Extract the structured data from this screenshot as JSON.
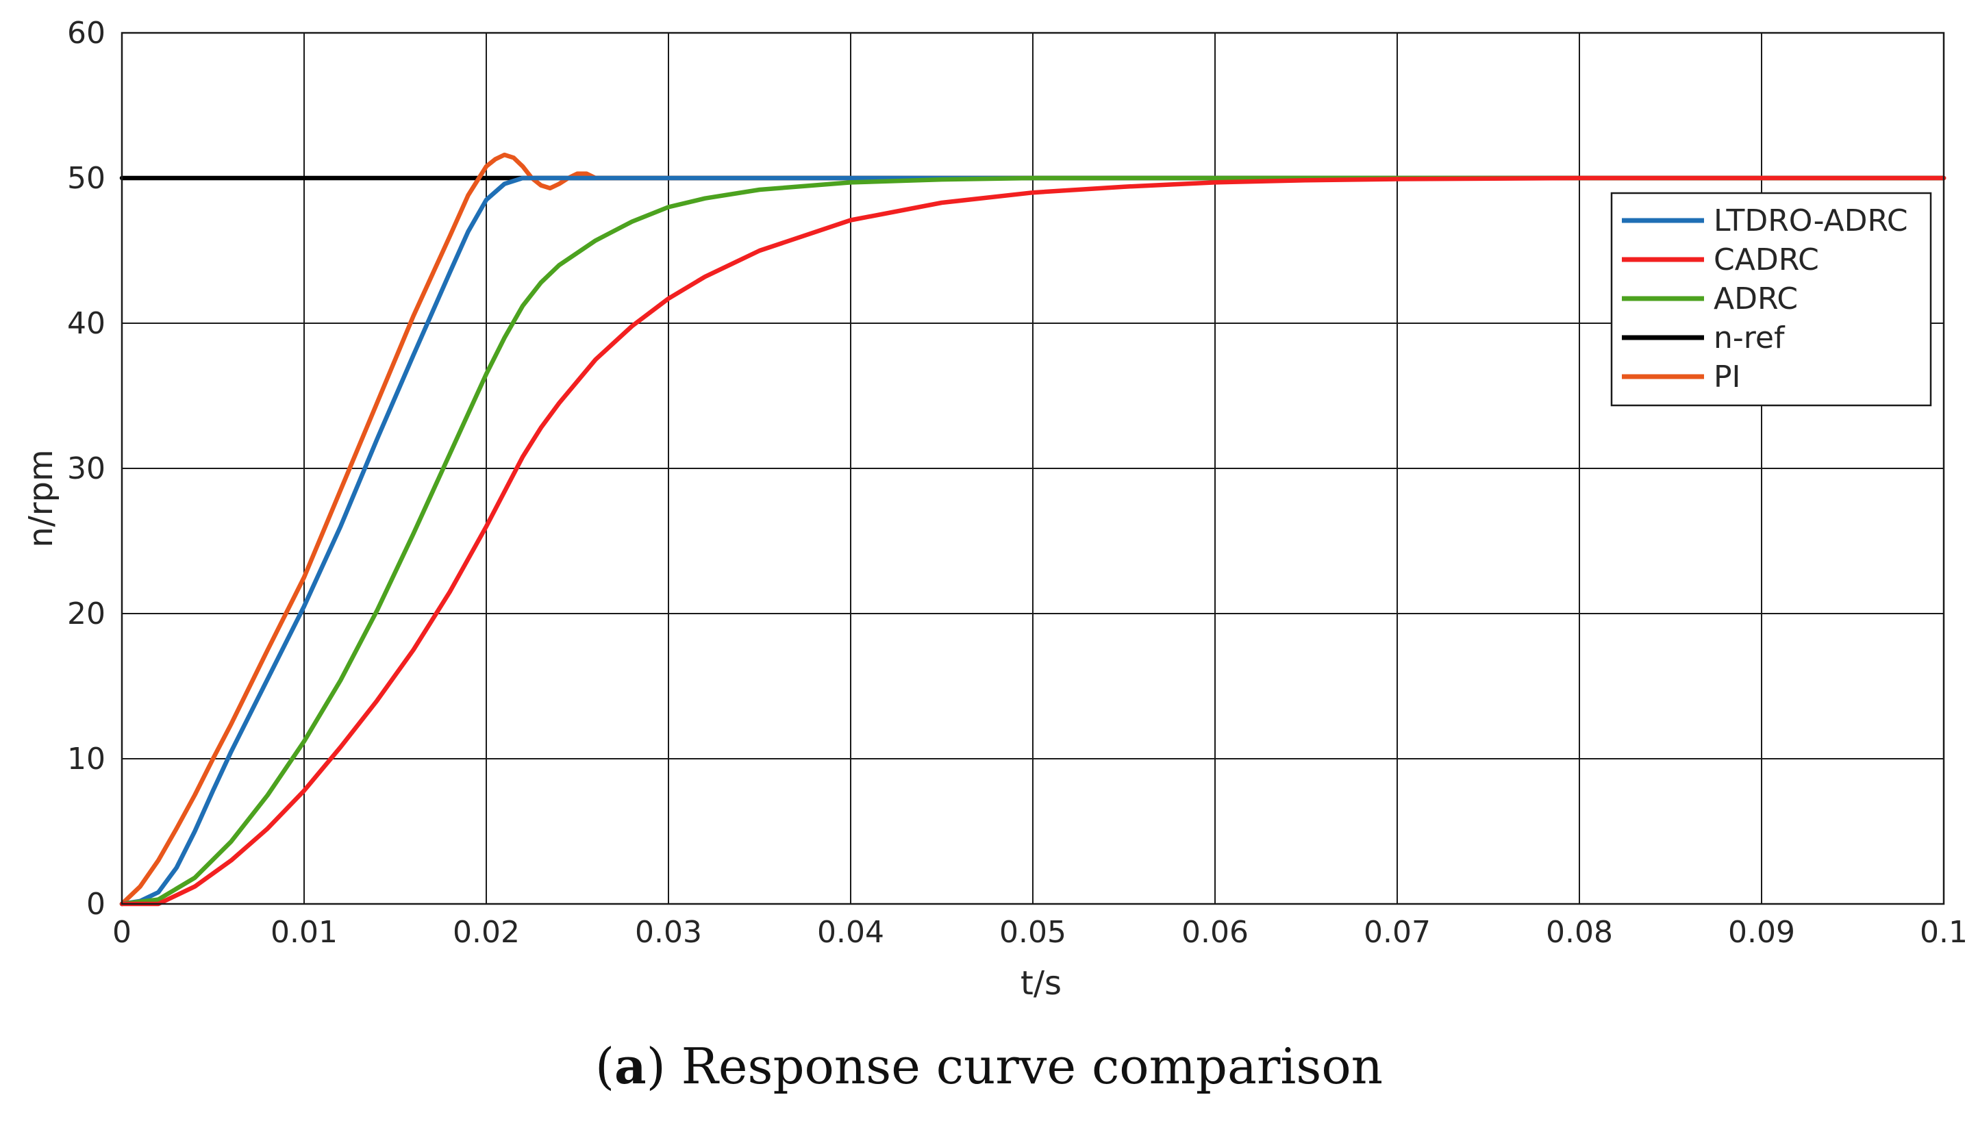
{
  "chart_data": {
    "type": "line",
    "title": "",
    "xlabel": "t/s",
    "ylabel": "n/rpm",
    "xlim": [
      0,
      0.1
    ],
    "ylim": [
      0,
      60
    ],
    "grid": true,
    "x_ticks": [
      0,
      0.01,
      0.02,
      0.03,
      0.04,
      0.05,
      0.06,
      0.07,
      0.08,
      0.09,
      0.1
    ],
    "x_tick_labels": [
      "0",
      "0.01",
      "0.02",
      "0.03",
      "0.04",
      "0.05",
      "0.06",
      "0.07",
      "0.08",
      "0.09",
      "0.1"
    ],
    "y_ticks": [
      0,
      10,
      20,
      30,
      40,
      50,
      60
    ],
    "y_tick_labels": [
      "0",
      "10",
      "20",
      "30",
      "40",
      "50",
      "60"
    ],
    "legend_position": "top-right",
    "series": [
      {
        "name": "n-ref",
        "color": "#000000",
        "x": [
          0,
          0.1
        ],
        "y": [
          50,
          50
        ]
      },
      {
        "name": "PI",
        "color": "#e8571c",
        "x": [
          0,
          0.001,
          0.002,
          0.003,
          0.004,
          0.005,
          0.006,
          0.008,
          0.01,
          0.012,
          0.014,
          0.016,
          0.018,
          0.019,
          0.02,
          0.0205,
          0.021,
          0.0215,
          0.022,
          0.0225,
          0.023,
          0.0235,
          0.024,
          0.0245,
          0.025,
          0.0255,
          0.026,
          0.027,
          0.028,
          0.03,
          0.04,
          0.06,
          0.08,
          0.1
        ],
        "y": [
          0,
          1.2,
          3.0,
          5.2,
          7.5,
          10.0,
          12.4,
          17.5,
          22.5,
          28.5,
          34.5,
          40.5,
          46.0,
          48.8,
          50.8,
          51.3,
          51.6,
          51.4,
          50.8,
          50.0,
          49.5,
          49.3,
          49.6,
          50.0,
          50.3,
          50.3,
          50.0,
          50.0,
          50.0,
          50.0,
          50.0,
          50.0,
          50.0,
          50.0
        ]
      },
      {
        "name": "LTDRO-ADRC",
        "color": "#1f6fb5",
        "x": [
          0,
          0.001,
          0.002,
          0.003,
          0.004,
          0.005,
          0.006,
          0.008,
          0.01,
          0.012,
          0.014,
          0.016,
          0.018,
          0.019,
          0.02,
          0.021,
          0.022,
          0.023,
          0.024,
          0.025,
          0.03,
          0.04,
          0.06,
          0.08,
          0.1
        ],
        "y": [
          0,
          0.2,
          0.8,
          2.5,
          5.0,
          7.8,
          10.5,
          15.5,
          20.5,
          26.0,
          32.0,
          37.8,
          43.5,
          46.3,
          48.5,
          49.6,
          50.0,
          50.0,
          50.0,
          50.0,
          50.0,
          50.0,
          50.0,
          50.0,
          50.0
        ]
      },
      {
        "name": "ADRC",
        "color": "#4ca21f",
        "x": [
          0,
          0.002,
          0.004,
          0.006,
          0.008,
          0.01,
          0.012,
          0.014,
          0.016,
          0.018,
          0.02,
          0.021,
          0.022,
          0.023,
          0.024,
          0.026,
          0.028,
          0.03,
          0.032,
          0.035,
          0.04,
          0.045,
          0.05,
          0.055,
          0.06,
          0.07,
          0.08,
          0.1
        ],
        "y": [
          0,
          0.3,
          1.8,
          4.3,
          7.5,
          11.2,
          15.4,
          20.2,
          25.5,
          31.0,
          36.5,
          39.0,
          41.2,
          42.8,
          44.0,
          45.7,
          47.0,
          48.0,
          48.6,
          49.2,
          49.7,
          49.9,
          50.0,
          50.0,
          50.0,
          50.0,
          50.0,
          50.0
        ]
      },
      {
        "name": "CADRC",
        "color": "#f22020",
        "x": [
          0,
          0.002,
          0.004,
          0.006,
          0.008,
          0.01,
          0.012,
          0.014,
          0.016,
          0.018,
          0.02,
          0.021,
          0.022,
          0.023,
          0.024,
          0.026,
          0.028,
          0.03,
          0.032,
          0.035,
          0.04,
          0.045,
          0.05,
          0.055,
          0.06,
          0.065,
          0.07,
          0.08,
          0.09,
          0.1
        ],
        "y": [
          0,
          0.0,
          1.2,
          3.0,
          5.2,
          7.8,
          10.8,
          14.0,
          17.5,
          21.5,
          26.0,
          28.4,
          30.8,
          32.8,
          34.5,
          37.5,
          39.8,
          41.7,
          43.2,
          45.0,
          47.1,
          48.3,
          49.0,
          49.4,
          49.7,
          49.85,
          49.93,
          50.0,
          50.0,
          50.0
        ]
      }
    ],
    "legend_order": [
      "LTDRO-ADRC",
      "CADRC",
      "ADRC",
      "n-ref",
      "PI"
    ]
  },
  "caption": {
    "label": "a",
    "text": "Response curve comparison"
  }
}
